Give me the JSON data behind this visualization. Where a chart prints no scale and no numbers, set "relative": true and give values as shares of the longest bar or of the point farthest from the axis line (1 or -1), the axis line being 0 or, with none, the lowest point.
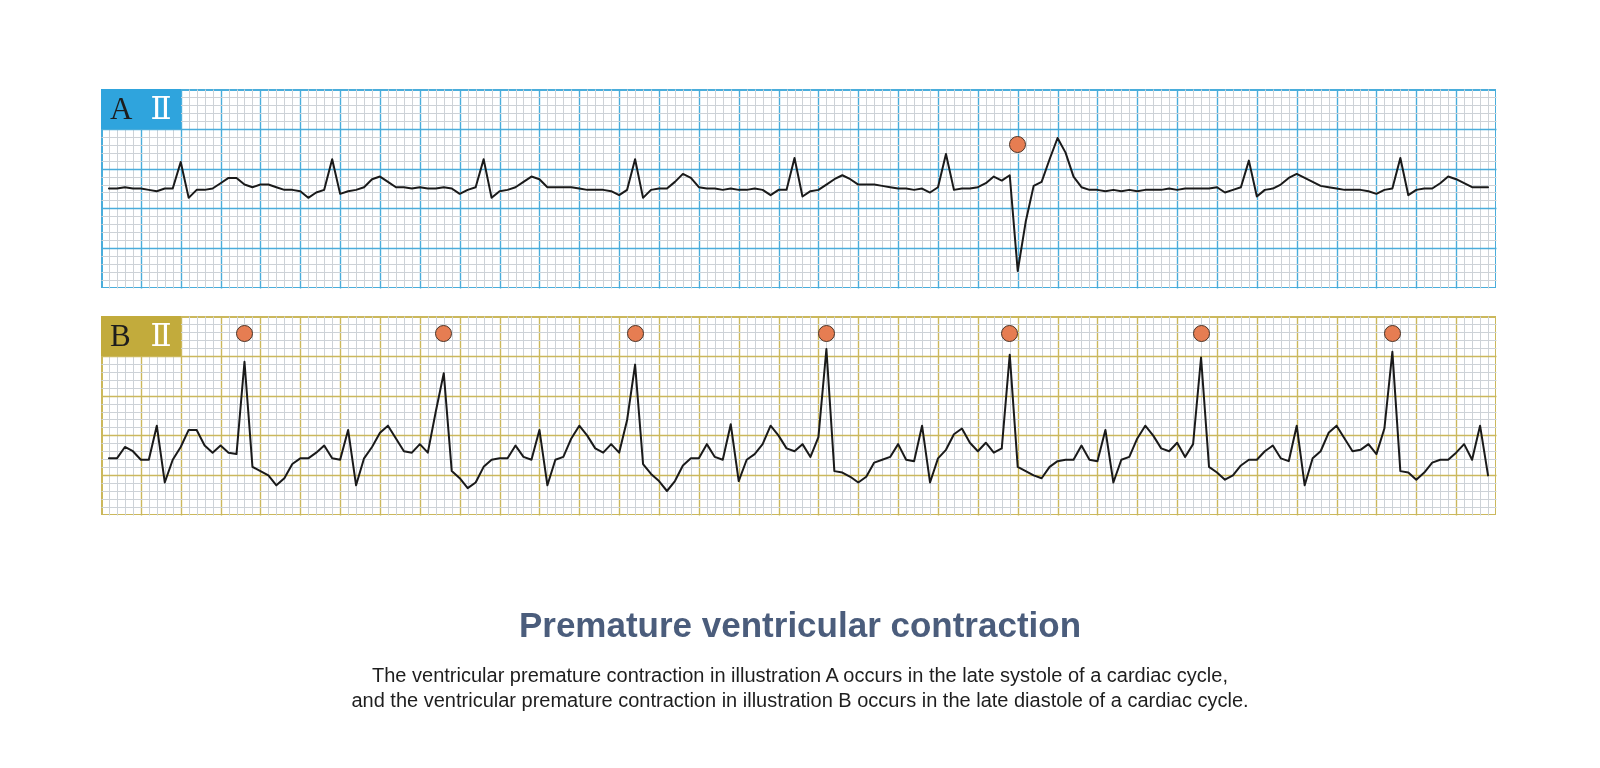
{
  "chart_data": [
    {
      "type": "line",
      "title": "A Ⅱ",
      "relative": true,
      "grid": true,
      "categories": [
        null,
        null,
        null,
        null,
        null,
        null,
        null,
        null,
        null,
        null,
        null,
        null,
        null,
        null,
        null,
        null,
        null,
        null,
        null,
        null,
        null,
        null,
        null,
        null,
        null,
        null,
        null,
        null,
        null,
        null,
        null,
        null,
        null,
        null,
        null,
        null,
        null,
        null,
        null,
        null,
        null,
        null,
        null,
        null,
        null,
        null,
        null,
        null,
        null,
        null,
        null,
        null,
        null,
        null,
        null,
        null,
        null,
        null,
        null,
        null,
        null,
        null,
        null,
        null,
        null,
        null,
        null,
        null,
        null,
        null,
        null,
        null,
        null,
        null,
        null,
        null,
        null,
        null,
        null,
        null,
        null,
        null,
        null,
        null,
        null,
        null,
        null,
        null,
        null,
        null,
        null,
        null,
        null,
        null,
        null,
        null,
        null,
        null,
        null,
        null,
        null,
        null,
        null,
        null,
        null,
        null,
        null,
        null,
        null,
        null,
        null,
        null,
        null,
        null,
        null,
        null,
        null,
        null,
        null,
        null,
        null,
        null,
        null,
        null,
        null,
        null,
        null,
        null,
        null,
        null,
        null,
        null,
        null,
        null,
        null,
        null,
        null,
        null,
        null,
        null,
        null,
        null,
        null,
        null,
        null,
        null,
        null,
        null,
        null,
        null,
        null,
        null,
        null,
        null,
        null,
        null,
        null,
        null,
        null,
        null,
        null,
        null,
        null,
        null,
        null,
        null,
        null,
        null,
        null,
        null,
        null,
        null,
        null,
        null
      ],
      "series": [
        {
          "type": "line",
          "color": "#1a1a1a",
          "values": [
            0.62,
            0.62,
            0.63,
            0.62,
            0.62,
            0.61,
            0.6,
            0.62,
            0.62,
            0.82,
            0.55,
            0.61,
            0.61,
            0.62,
            0.66,
            0.7,
            0.7,
            0.65,
            0.63,
            0.65,
            0.65,
            0.63,
            0.61,
            0.61,
            0.6,
            0.55,
            0.59,
            0.61,
            0.84,
            0.58,
            0.6,
            0.61,
            0.63,
            0.69,
            0.71,
            0.67,
            0.63,
            0.63,
            0.62,
            0.63,
            0.62,
            0.62,
            0.63,
            0.62,
            0.58,
            0.61,
            0.63,
            0.84,
            0.55,
            0.6,
            0.61,
            0.63,
            0.67,
            0.71,
            0.69,
            0.63,
            0.63,
            0.63,
            0.63,
            0.62,
            0.61,
            0.61,
            0.61,
            0.6,
            0.57,
            0.61,
            0.84,
            0.55,
            0.61,
            0.62,
            0.62,
            0.67,
            0.73,
            0.7,
            0.63,
            0.62,
            0.62,
            0.61,
            0.62,
            0.61,
            0.61,
            0.62,
            0.61,
            0.57,
            0.61,
            0.61,
            0.85,
            0.56,
            0.6,
            0.61,
            0.65,
            0.69,
            0.72,
            0.69,
            0.65,
            0.65,
            0.65,
            0.64,
            0.63,
            0.62,
            0.62,
            0.61,
            0.62,
            0.59,
            0.63,
            0.88,
            0.61,
            0.62,
            0.62,
            0.63,
            0.66,
            0.71,
            0.68,
            0.72,
            0,
            0.37,
            0.64,
            0.67,
            0.84,
            1,
            0.89,
            0.71,
            0.63,
            0.61,
            0.61,
            0.6,
            0.61,
            0.6,
            0.61,
            0.6,
            0.61,
            0.61,
            0.61,
            0.62,
            0.61,
            0.62,
            0.62,
            0.62,
            0.62,
            0.63,
            0.59,
            0.61,
            0.63,
            0.83,
            0.56,
            0.61,
            0.62,
            0.65,
            0.7,
            0.73,
            0.7,
            0.67,
            0.64,
            0.63,
            0.62,
            0.61,
            0.61,
            0.61,
            0.6,
            0.58,
            0.61,
            0.62,
            0.85,
            0.57,
            0.61,
            0.62,
            0.62,
            0.66,
            0.71,
            0.69,
            0.66,
            0.63,
            0.63,
            0.63
          ]
        }
      ]
    },
    {
      "type": "line",
      "title": "B Ⅱ",
      "relative": true,
      "grid": true,
      "categories": [
        null,
        null,
        null,
        null,
        null,
        null,
        null,
        null,
        null,
        null,
        null,
        null,
        null,
        null,
        null,
        null,
        null,
        null,
        null,
        null,
        null,
        null,
        null,
        null,
        null,
        null,
        null,
        null,
        null,
        null,
        null,
        null,
        null,
        null,
        null,
        null,
        null,
        null,
        null,
        null,
        null,
        null,
        null,
        null,
        null,
        null,
        null,
        null,
        null,
        null,
        null,
        null,
        null,
        null,
        null,
        null,
        null,
        null,
        null,
        null,
        null,
        null,
        null,
        null,
        null,
        null,
        null,
        null,
        null,
        null,
        null,
        null,
        null,
        null,
        null,
        null,
        null,
        null,
        null,
        null,
        null,
        null,
        null,
        null,
        null,
        null,
        null,
        null,
        null,
        null,
        null,
        null,
        null,
        null,
        null,
        null,
        null,
        null,
        null,
        null,
        null,
        null,
        null,
        null,
        null,
        null,
        null,
        null,
        null,
        null,
        null,
        null,
        null,
        null,
        null,
        null,
        null,
        null,
        null,
        null,
        null,
        null,
        null,
        null,
        null,
        null,
        null,
        null,
        null,
        null,
        null,
        null,
        null,
        null,
        null,
        null,
        null,
        null,
        null,
        null,
        null,
        null,
        null,
        null,
        null,
        null,
        null,
        null,
        null,
        null,
        null,
        null,
        null,
        null,
        null,
        null,
        null,
        null,
        null,
        null,
        null,
        null,
        null,
        null,
        null,
        null,
        null,
        null,
        null,
        null,
        null,
        null,
        null,
        null
      ],
      "series": [
        {
          "type": "line",
          "color": "#1a1a1a",
          "values": [
            0.23,
            0.23,
            0.31,
            0.28,
            0.22,
            0.22,
            0.46,
            0.06,
            0.22,
            0.31,
            0.43,
            0.43,
            0.32,
            0.27,
            0.32,
            0.27,
            0.26,
            0.91,
            0.17,
            0.14,
            0.11,
            0.04,
            0.09,
            0.19,
            0.23,
            0.23,
            0.27,
            0.32,
            0.23,
            0.22,
            0.43,
            0.04,
            0.23,
            0.31,
            0.41,
            0.46,
            0.37,
            0.28,
            0.27,
            0.33,
            0.27,
            0.56,
            0.83,
            0.14,
            0.09,
            0.02,
            0.06,
            0.17,
            0.22,
            0.23,
            0.23,
            0.32,
            0.24,
            0.22,
            0.43,
            0.04,
            0.22,
            0.24,
            0.37,
            0.46,
            0.39,
            0.3,
            0.27,
            0.33,
            0.27,
            0.5,
            0.89,
            0.19,
            0.12,
            0.07,
            0,
            0.07,
            0.18,
            0.23,
            0.23,
            0.33,
            0.24,
            0.22,
            0.47,
            0.07,
            0.22,
            0.26,
            0.33,
            0.46,
            0.39,
            0.3,
            0.28,
            0.33,
            0.24,
            0.38,
            1,
            0.14,
            0.13,
            0.1,
            0.06,
            0.1,
            0.2,
            0.22,
            0.24,
            0.33,
            0.22,
            0.21,
            0.46,
            0.06,
            0.23,
            0.29,
            0.4,
            0.44,
            0.34,
            0.28,
            0.34,
            0.27,
            0.3,
            0.96,
            0.17,
            0.14,
            0.11,
            0.09,
            0.17,
            0.21,
            0.22,
            0.22,
            0.32,
            0.22,
            0.21,
            0.43,
            0.06,
            0.22,
            0.24,
            0.37,
            0.46,
            0.39,
            0.3,
            0.28,
            0.34,
            0.24,
            0.33,
            0.94,
            0.17,
            0.13,
            0.08,
            0.11,
            0.18,
            0.22,
            0.22,
            0.28,
            0.32,
            0.23,
            0.21,
            0.46,
            0.04,
            0.23,
            0.28,
            0.41,
            0.46,
            0.37,
            0.28,
            0.29,
            0.33,
            0.26,
            0.44,
            0.98,
            0.14,
            0.13,
            0.08,
            0.13,
            0.2,
            0.22,
            0.22,
            0.27,
            0.33,
            0.22,
            0.46,
            0.11
          ]
        }
      ]
    },
    {
      "type": "other",
      "title": "Premature ventricular contraction",
      "subtitle": "The ventricular premature contraction in illustration A occurs in the late systole of a cardiac cycle,\nand the ventricular premature contraction in illustration B occurs in the late diastole of a cardiac cycle."
    }
  ]
}
